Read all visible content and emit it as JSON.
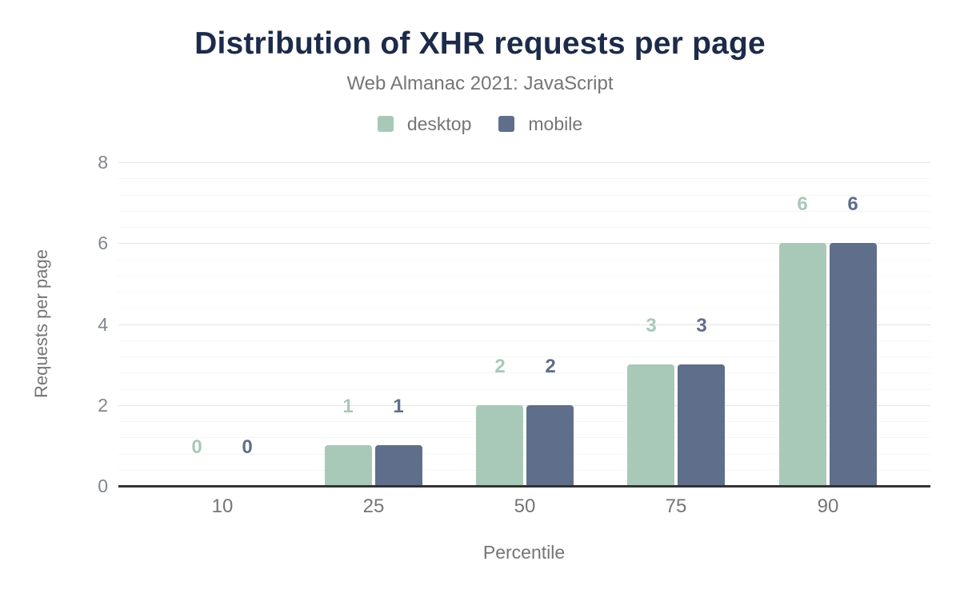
{
  "chart_data": {
    "type": "bar",
    "title": "Distribution of XHR requests per page",
    "subtitle": "Web Almanac 2021: JavaScript",
    "categories": [
      "10",
      "25",
      "50",
      "75",
      "90"
    ],
    "series": [
      {
        "name": "desktop",
        "color": "#a8c9b8",
        "values": [
          0,
          1,
          2,
          3,
          6
        ]
      },
      {
        "name": "mobile",
        "color": "#5f6e8a",
        "values": [
          0,
          1,
          2,
          3,
          6
        ]
      }
    ],
    "data_labels": true,
    "xlabel": "Percentile",
    "ylabel": "Requests per page",
    "ylim": [
      0,
      8
    ],
    "yticks": [
      0,
      2,
      4,
      6,
      8
    ],
    "minor_gridlines_per_major": 4,
    "grid": true,
    "legend_position": "top"
  },
  "colors": {
    "title": "#1c2b4a",
    "muted_text": "#757575",
    "tick_text": "#82868c",
    "gridline_major": "#e4e4e4",
    "gridline_minor": "#f5f5f5",
    "baseline": "#333333",
    "background": "#ffffff"
  }
}
